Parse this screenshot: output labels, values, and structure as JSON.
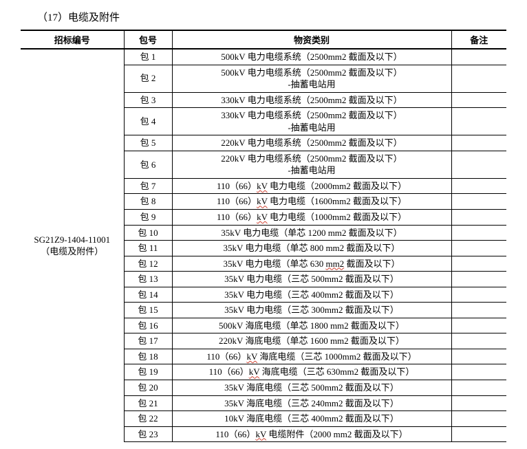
{
  "section_title": "（17）电缆及附件",
  "headers": {
    "bid": "招标编号",
    "pkg": "包号",
    "desc": "物资类别",
    "note": "备注"
  },
  "bid_number_line1": "SG21Z9-1404-11001",
  "bid_number_line2": "（电缆及附件）",
  "rows": [
    {
      "pkg": "包 1",
      "desc_parts": [
        {
          "t": "500kV 电力电缆系统（2500mm2 截面及以下）"
        }
      ]
    },
    {
      "pkg": "包 2",
      "desc_parts": [
        {
          "t": "500kV 电力电缆系统（2500mm2 截面及以下）"
        },
        {
          "br": true
        },
        {
          "t": "-抽蓄电站用"
        }
      ]
    },
    {
      "pkg": "包 3",
      "desc_parts": [
        {
          "t": "330kV 电力电缆系统（2500mm2 截面及以下）"
        }
      ]
    },
    {
      "pkg": "包 4",
      "desc_parts": [
        {
          "t": "330kV 电力电缆系统（2500mm2 截面及以下）"
        },
        {
          "br": true
        },
        {
          "t": "-抽蓄电站用"
        }
      ]
    },
    {
      "pkg": "包 5",
      "desc_parts": [
        {
          "t": "220kV 电力电缆系统（2500mm2 截面及以下）"
        }
      ]
    },
    {
      "pkg": "包 6",
      "desc_parts": [
        {
          "t": "220kV 电力电缆系统（2500mm2 截面及以下）"
        },
        {
          "br": true
        },
        {
          "t": "-抽蓄电站用"
        }
      ]
    },
    {
      "pkg": "包 7",
      "desc_parts": [
        {
          "t": "110（66）"
        },
        {
          "t": "kV",
          "wavy": true
        },
        {
          "t": " 电力电缆（2000mm2 截面及以下）"
        }
      ]
    },
    {
      "pkg": "包 8",
      "desc_parts": [
        {
          "t": "110（66）"
        },
        {
          "t": "kV",
          "wavy": true
        },
        {
          "t": " 电力电缆（1600mm2 截面及以下）"
        }
      ]
    },
    {
      "pkg": "包 9",
      "desc_parts": [
        {
          "t": "110（66）"
        },
        {
          "t": "kV",
          "wavy": true
        },
        {
          "t": " 电力电缆（1000mm2 截面及以下）"
        }
      ]
    },
    {
      "pkg": "包 10",
      "desc_parts": [
        {
          "t": "35kV 电力电缆（单芯 1200 mm2 截面及以下）"
        }
      ]
    },
    {
      "pkg": "包 11",
      "desc_parts": [
        {
          "t": "35kV 电力电缆（单芯 800 mm2 截面及以下）"
        }
      ]
    },
    {
      "pkg": "包 12",
      "desc_parts": [
        {
          "t": "35kV 电力电缆（单芯 630 "
        },
        {
          "t": "mm2",
          "wavy": true
        },
        {
          "t": " 截面及以下）"
        }
      ]
    },
    {
      "pkg": "包 13",
      "desc_parts": [
        {
          "t": "35kV 电力电缆（三芯 500mm2 截面及以下）"
        }
      ]
    },
    {
      "pkg": "包 14",
      "desc_parts": [
        {
          "t": "35kV 电力电缆（三芯 400mm2 截面及以下）"
        }
      ]
    },
    {
      "pkg": "包 15",
      "desc_parts": [
        {
          "t": "35kV 电力电缆（三芯 300mm2 截面及以下）"
        }
      ]
    },
    {
      "pkg": "包 16",
      "desc_parts": [
        {
          "t": "500kV 海底电缆（单芯 1800 mm2 截面及以下）"
        }
      ]
    },
    {
      "pkg": "包 17",
      "desc_parts": [
        {
          "t": "220kV 海底电缆（单芯 1600 mm2 截面及以下）"
        }
      ]
    },
    {
      "pkg": "包 18",
      "desc_parts": [
        {
          "t": "110（66）"
        },
        {
          "t": "kV",
          "wavy": true
        },
        {
          "t": " 海底电缆（三芯 1000mm2 截面及以下）"
        }
      ]
    },
    {
      "pkg": "包 19",
      "desc_parts": [
        {
          "t": "110（66）"
        },
        {
          "t": "kV",
          "wavy": true
        },
        {
          "t": " 海底电缆（三芯 630mm2 截面及以下）"
        }
      ]
    },
    {
      "pkg": "包 20",
      "desc_parts": [
        {
          "t": "35kV 海底电缆（三芯 500mm2 截面及以下）"
        }
      ]
    },
    {
      "pkg": "包 21",
      "desc_parts": [
        {
          "t": "35kV 海底电缆（三芯 240mm2 截面及以下）"
        }
      ]
    },
    {
      "pkg": "包 22",
      "desc_parts": [
        {
          "t": "10kV 海底电缆（三芯 400mm2 截面及以下）"
        }
      ]
    },
    {
      "pkg": "包 23",
      "desc_parts": [
        {
          "t": "110（66）"
        },
        {
          "t": "kV",
          "wavy": true
        },
        {
          "t": " 电缆附件（2000 mm2 截面及以下）"
        }
      ]
    }
  ]
}
